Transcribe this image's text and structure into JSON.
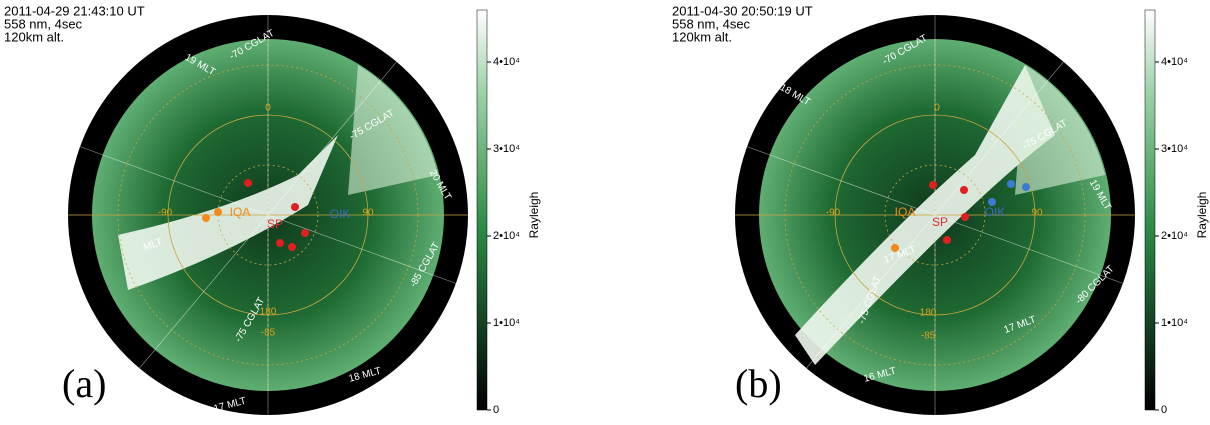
{
  "panels": [
    {
      "label": "(a)",
      "header": [
        "2011-04-29 21:43:10 UT",
        "558 nm,   4sec",
        "120km alt."
      ],
      "grid_labels": [
        "-70 CGLAT",
        "19 MLT",
        "0",
        "-75 CGLAT",
        "20 MLT",
        "-90",
        "90",
        "180",
        "-85",
        "18 MLT",
        "17 MLT",
        "-85 CGLAT",
        "-75 CGLAT",
        "MLT"
      ],
      "stations": [
        "IQA",
        "SP",
        "OIK"
      ],
      "colorbar": {
        "title": "Rayleigh",
        "ticks": [
          "0",
          "1•10⁴",
          "2•10⁴",
          "3•10⁴",
          "4•10⁴"
        ]
      }
    },
    {
      "label": "(b)",
      "header": [
        "2011-04-30 20:50:19 UT",
        "558 nm,   4sec",
        "120km alt."
      ],
      "grid_labels": [
        "-70 CGLAT",
        "18 MLT",
        "0",
        "-75 CGLAT",
        "19 MLT",
        "-90",
        "90",
        "180",
        "-85",
        "17 MLT",
        "-75 CGLAT",
        "-80 CGLAT",
        "17 MLT",
        "16 MLT"
      ],
      "stations": [
        "IQA",
        "SP",
        "OIK"
      ],
      "colorbar": {
        "title": "Rayleigh",
        "ticks": [
          "0",
          "1•10⁴",
          "2•10⁴",
          "3•10⁴",
          "4•10⁴"
        ]
      }
    }
  ]
}
